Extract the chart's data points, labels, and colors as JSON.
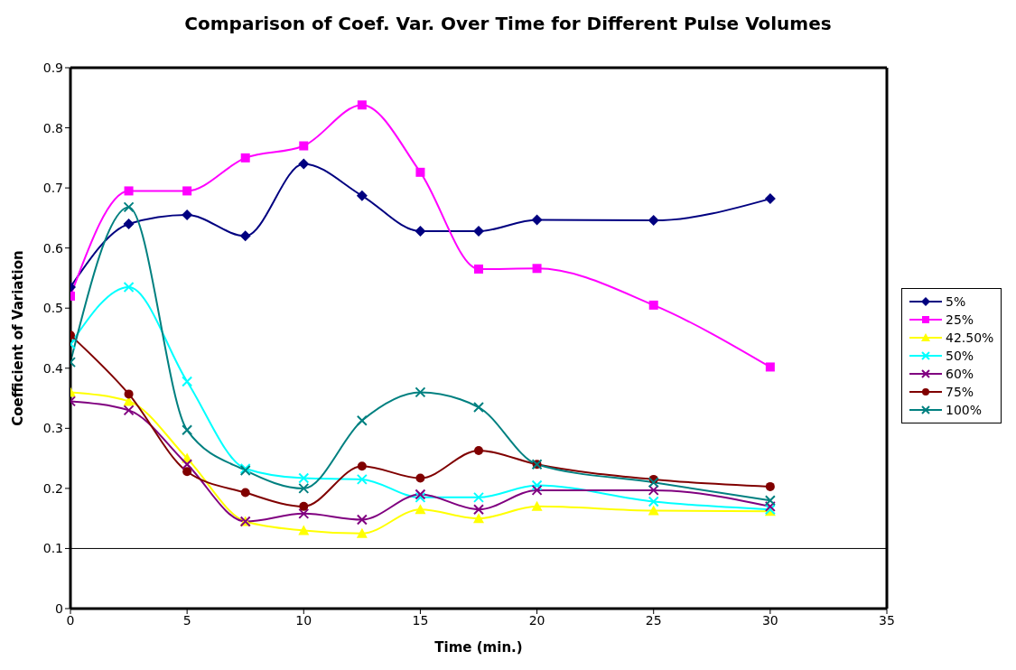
{
  "chart_data": {
    "type": "line",
    "title": "Comparison of Coef. Var. Over Time for Different Pulse Volumes",
    "xlabel": "Time (min.)",
    "ylabel": "Coefficient of Variation",
    "x": [
      0,
      2.5,
      5,
      7.5,
      10,
      12.5,
      15,
      17.5,
      20,
      25,
      30
    ],
    "series": [
      {
        "name": "5%",
        "color": "#000080",
        "marker": "diamond",
        "values": [
          0.535,
          0.64,
          0.655,
          0.62,
          0.74,
          0.687,
          0.628,
          0.628,
          0.647,
          0.646,
          0.682
        ]
      },
      {
        "name": "25%",
        "color": "#ff00ff",
        "marker": "square",
        "values": [
          0.52,
          0.695,
          0.695,
          0.75,
          0.77,
          0.838,
          0.726,
          0.565,
          0.566,
          0.505,
          0.402
        ]
      },
      {
        "name": "42.50%",
        "color": "#ffff00",
        "marker": "triangle",
        "values": [
          0.36,
          0.345,
          0.25,
          0.145,
          0.13,
          0.125,
          0.165,
          0.15,
          0.17,
          0.163,
          0.162
        ]
      },
      {
        "name": "50%",
        "color": "#00ffff",
        "marker": "cross",
        "values": [
          0.44,
          0.535,
          0.378,
          0.233,
          0.217,
          0.215,
          0.185,
          0.185,
          0.205,
          0.178,
          0.165
        ]
      },
      {
        "name": "60%",
        "color": "#800080",
        "marker": "cross",
        "values": [
          0.345,
          0.33,
          0.24,
          0.145,
          0.158,
          0.148,
          0.19,
          0.165,
          0.197,
          0.197,
          0.17
        ]
      },
      {
        "name": "75%",
        "color": "#800000",
        "marker": "circle",
        "values": [
          0.455,
          0.357,
          0.228,
          0.193,
          0.17,
          0.237,
          0.217,
          0.263,
          0.24,
          0.215,
          0.203
        ]
      },
      {
        "name": "100%",
        "color": "#008080",
        "marker": "cross",
        "values": [
          0.41,
          0.668,
          0.297,
          0.23,
          0.2,
          0.313,
          0.36,
          0.335,
          0.24,
          0.21,
          0.18
        ]
      }
    ],
    "xlim": [
      0,
      35
    ],
    "xticks": [
      0,
      5,
      10,
      15,
      20,
      25,
      30,
      35
    ],
    "ylim": [
      0,
      0.9
    ],
    "yticks": [
      0,
      0.1,
      0.2,
      0.3,
      0.4,
      0.5,
      0.6,
      0.7,
      0.8,
      0.9
    ],
    "ref_lines": [
      {
        "axis": "y",
        "value": 0.1,
        "color": "#000000"
      }
    ],
    "legend": "right"
  }
}
